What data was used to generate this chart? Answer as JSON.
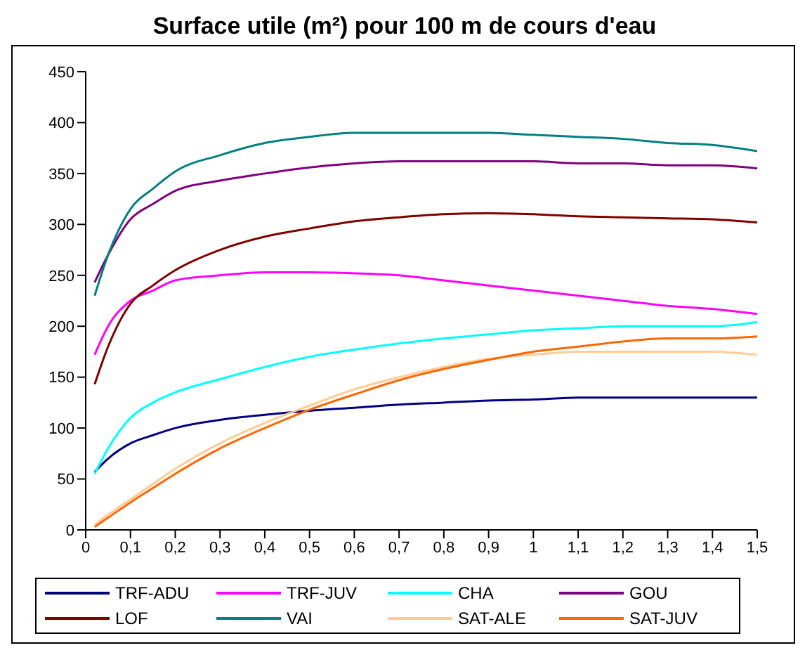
{
  "chart_data": {
    "type": "line",
    "title": "Surface utile (m²) pour 100 m de cours d'eau",
    "x": [
      0.02,
      0.05,
      0.1,
      0.15,
      0.2,
      0.3,
      0.4,
      0.5,
      0.6,
      0.7,
      0.8,
      0.9,
      1.0,
      1.1,
      1.2,
      1.3,
      1.4,
      1.5
    ],
    "series": [
      {
        "name": "TRF-ADU",
        "color": "#000080",
        "values": [
          57,
          70,
          85,
          93,
          100,
          108,
          113,
          117,
          120,
          123,
          125,
          127,
          128,
          130,
          130,
          130,
          130,
          130
        ]
      },
      {
        "name": "TRF-JUV",
        "color": "#ff00ff",
        "values": [
          172,
          200,
          225,
          235,
          245,
          250,
          253,
          253,
          252,
          250,
          245,
          240,
          235,
          230,
          225,
          220,
          217,
          212
        ]
      },
      {
        "name": "CHA",
        "color": "#00ffff",
        "values": [
          55,
          80,
          110,
          125,
          135,
          148,
          160,
          170,
          177,
          183,
          188,
          192,
          196,
          198,
          200,
          200,
          200,
          204
        ]
      },
      {
        "name": "GOU",
        "color": "#800080",
        "values": [
          243,
          270,
          305,
          320,
          333,
          343,
          350,
          356,
          360,
          362,
          362,
          362,
          362,
          360,
          360,
          358,
          358,
          355
        ]
      },
      {
        "name": "LOF",
        "color": "#800000",
        "values": [
          143,
          180,
          222,
          240,
          255,
          275,
          288,
          296,
          303,
          307,
          310,
          311,
          310,
          308,
          307,
          306,
          305,
          302
        ]
      },
      {
        "name": "VAI",
        "color": "#008080",
        "values": [
          230,
          270,
          315,
          335,
          352,
          368,
          380,
          386,
          390,
          390,
          390,
          390,
          388,
          386,
          384,
          380,
          378,
          372
        ]
      },
      {
        "name": "SAT-ALE",
        "color": "#ffcc99",
        "values": [
          5,
          15,
          30,
          45,
          60,
          85,
          105,
          122,
          138,
          150,
          160,
          168,
          172,
          175,
          175,
          175,
          175,
          172
        ]
      },
      {
        "name": "SAT-JUV",
        "color": "#ff6600",
        "values": [
          3,
          12,
          27,
          41,
          55,
          80,
          100,
          118,
          133,
          147,
          158,
          167,
          175,
          180,
          185,
          188,
          188,
          190
        ]
      }
    ],
    "xlim": [
      0,
      1.5
    ],
    "xticks": [
      0,
      {
        "value": 0.1,
        "label": "0,1"
      },
      {
        "value": 0.2,
        "label": "0,2"
      },
      {
        "value": 0.3,
        "label": "0,3"
      },
      {
        "value": 0.4,
        "label": "0,4"
      },
      {
        "value": 0.5,
        "label": "0,5"
      },
      {
        "value": 0.6,
        "label": "0,6"
      },
      {
        "value": 0.7,
        "label": "0,7"
      },
      {
        "value": 0.8,
        "label": "0,8"
      },
      {
        "value": 0.9,
        "label": "0,9"
      },
      1,
      {
        "value": 1.1,
        "label": "1,1"
      },
      {
        "value": 1.2,
        "label": "1,2"
      },
      {
        "value": 1.3,
        "label": "1,3"
      },
      {
        "value": 1.4,
        "label": "1,4"
      },
      {
        "value": 1.5,
        "label": "1,5"
      }
    ],
    "ylim": [
      0,
      450
    ],
    "yticks": [
      0,
      50,
      100,
      150,
      200,
      250,
      300,
      350,
      400,
      450
    ],
    "legend": "bottom",
    "marker": "none",
    "line_style": "solid",
    "grid": false
  }
}
